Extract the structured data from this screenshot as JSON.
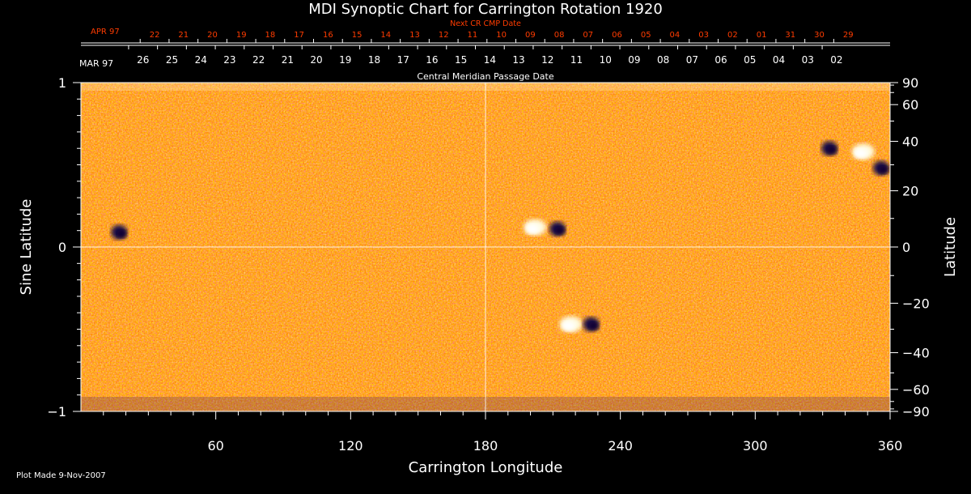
{
  "chart_data": {
    "type": "heatmap",
    "title": "MDI Synoptic Chart for Carrington Rotation 1920",
    "xlabel": "Carrington Longitude",
    "ylabel_left": "Sine Latitude",
    "ylabel_right": "Latitude",
    "xlim": [
      0,
      360
    ],
    "ylim": [
      -1,
      1
    ],
    "x_ticks": [
      60,
      120,
      180,
      240,
      300,
      360
    ],
    "y_ticks_left": [
      1,
      0,
      -1
    ],
    "y_ticks_left_labels": [
      "1",
      "0",
      "−1"
    ],
    "y_ticks_right": [
      90,
      60,
      40,
      20,
      0,
      -20,
      -40,
      -60,
      -90
    ],
    "y_ticks_right_labels": [
      "90",
      "60",
      "40",
      "20",
      "0",
      "−20",
      "−40",
      "−60",
      "−90"
    ],
    "grid": "crosshair at longitude 180 and sine latitude 0",
    "top_axis_title": "Central Meridian Passage Date",
    "top_axis_month_label": "MAR 97",
    "top_axis_dates": [
      "26",
      "25",
      "24",
      "23",
      "22",
      "21",
      "20",
      "19",
      "18",
      "17",
      "16",
      "15",
      "14",
      "13",
      "12",
      "11",
      "10",
      "09",
      "08",
      "07",
      "06",
      "05",
      "04",
      "03",
      "02"
    ],
    "next_axis_title": "Next CR CMP Date",
    "next_axis_month_label": "APR 97",
    "next_axis_dates": [
      "22",
      "21",
      "20",
      "19",
      "18",
      "17",
      "16",
      "15",
      "14",
      "13",
      "12",
      "11",
      "10",
      "09",
      "08",
      "07",
      "06",
      "05",
      "04",
      "03",
      "02",
      "01",
      "31",
      "30",
      "29"
    ],
    "colormap": [
      "#1a0f4a",
      "#8a1a10",
      "#ff3c00",
      "#ff7a12",
      "#ffd050",
      "#fffbe0"
    ],
    "active_regions": [
      {
        "lon": 17,
        "sinlat": 0.09,
        "polarity": "negative"
      },
      {
        "lon": 202,
        "sinlat": 0.12,
        "polarity": "positive"
      },
      {
        "lon": 212,
        "sinlat": 0.11,
        "polarity": "negative"
      },
      {
        "lon": 218,
        "sinlat": -0.47,
        "polarity": "positive"
      },
      {
        "lon": 227,
        "sinlat": -0.47,
        "polarity": "negative"
      },
      {
        "lon": 333,
        "sinlat": 0.6,
        "polarity": "negative"
      },
      {
        "lon": 348,
        "sinlat": 0.58,
        "polarity": "positive"
      },
      {
        "lon": 356,
        "sinlat": 0.48,
        "polarity": "negative"
      }
    ]
  },
  "footer": {
    "plot_made": "Plot Made  9-Nov-2007"
  },
  "colors": {
    "accent": "#ff3c00",
    "axis": "#ffffff",
    "background": "#000000",
    "next_axis": "#ff3c00"
  }
}
